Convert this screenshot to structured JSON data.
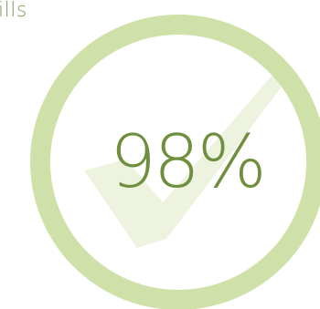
{
  "section": {
    "title": "ills"
  },
  "gauge": {
    "percent_label": "98%",
    "percent": 98,
    "icon": "checkmark-icon",
    "ring_color": "#cfe0a8",
    "check_color": "#eef3df",
    "text_color": "#6f8f3e"
  }
}
